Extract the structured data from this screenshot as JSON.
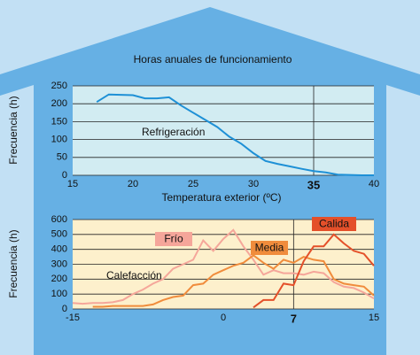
{
  "chart_data": [
    {
      "type": "line",
      "title": "Horas anuales de funcionamiento",
      "annotation": "Refrigeración",
      "xlabel": "Temperatura exterior (ºC)",
      "ylabel": "Frecuencia (h)",
      "xlim": [
        15,
        40
      ],
      "xticks": [
        15,
        20,
        25,
        30,
        35,
        40
      ],
      "ylim": [
        0,
        250
      ],
      "yticks": [
        0,
        50,
        100,
        150,
        200,
        250
      ],
      "grid": true,
      "vline": 35,
      "x": [
        17,
        18,
        19,
        20,
        21,
        22,
        23,
        24,
        25,
        26,
        27,
        28,
        29,
        30,
        31,
        32,
        33,
        34,
        35,
        36,
        37,
        38,
        39,
        40
      ],
      "series": [
        {
          "name": "Refrigeración",
          "color": "#1e90d6",
          "values": [
            205,
            226,
            225,
            224,
            215,
            215,
            218,
            195,
            175,
            155,
            135,
            108,
            88,
            62,
            40,
            32,
            25,
            18,
            12,
            8,
            2,
            1,
            0,
            0
          ]
        }
      ]
    },
    {
      "type": "line",
      "annotation": "Calefacción",
      "ylabel": "Frecuencia (h)",
      "xlim": [
        -15,
        15
      ],
      "xticks": [
        -15,
        0,
        7,
        15
      ],
      "ylim": [
        0,
        600
      ],
      "yticks": [
        0,
        100,
        200,
        300,
        400,
        500,
        600
      ],
      "grid": true,
      "vline": 7,
      "x": [
        -15,
        -14,
        -13,
        -12,
        -11,
        -10,
        -9,
        -8,
        -7,
        -6,
        -5,
        -4,
        -3,
        -2,
        -1,
        0,
        1,
        2,
        3,
        4,
        5,
        6,
        7,
        8,
        9,
        10,
        11,
        12,
        13,
        14,
        15
      ],
      "series": [
        {
          "name": "Frío",
          "color": "#f5a69a",
          "values": [
            40,
            35,
            40,
            40,
            45,
            60,
            100,
            130,
            170,
            200,
            270,
            300,
            330,
            460,
            390,
            470,
            530,
            420,
            330,
            230,
            260,
            240,
            240,
            230,
            250,
            240,
            180,
            150,
            140,
            110,
            70
          ]
        },
        {
          "name": "Media",
          "color": "#f08c3c",
          "values": [
            null,
            null,
            15,
            15,
            20,
            20,
            20,
            20,
            30,
            60,
            80,
            90,
            160,
            170,
            230,
            260,
            290,
            310,
            360,
            310,
            270,
            330,
            310,
            350,
            330,
            320,
            200,
            170,
            160,
            150,
            90
          ]
        },
        {
          "name": "Calida",
          "color": "#e4502a",
          "values": [
            null,
            null,
            null,
            null,
            null,
            null,
            null,
            null,
            null,
            null,
            null,
            null,
            null,
            null,
            null,
            null,
            null,
            null,
            10,
            60,
            60,
            170,
            160,
            320,
            420,
            420,
            500,
            440,
            390,
            370,
            290
          ]
        }
      ]
    }
  ]
}
